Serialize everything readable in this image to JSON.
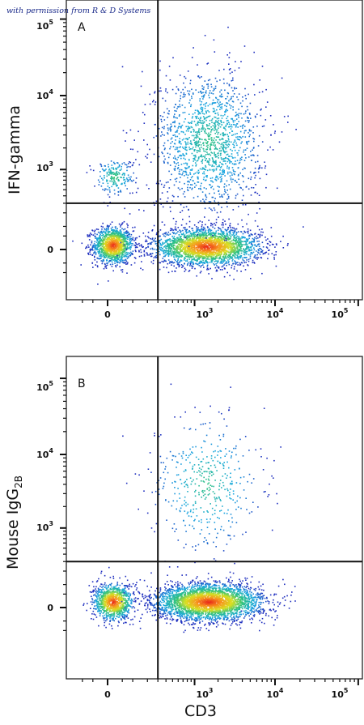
{
  "credit": "with permission from R & D Systems",
  "shared_xlabel": "CD3",
  "chart_data": [
    {
      "type": "scatter",
      "panel_label": "A",
      "ylabel": "IFN-gamma",
      "xlabel": "CD3",
      "scale": "biexponential",
      "xlim": [
        -150,
        200000
      ],
      "ylim": [
        -150,
        200000
      ],
      "x_ticks": [
        {
          "base": "0",
          "exp": ""
        },
        {
          "base": "10",
          "exp": "3"
        },
        {
          "base": "10",
          "exp": "4"
        },
        {
          "base": "10",
          "exp": "5"
        }
      ],
      "y_ticks": [
        {
          "base": "0",
          "exp": ""
        },
        {
          "base": "10",
          "exp": "3"
        },
        {
          "base": "10",
          "exp": "4"
        },
        {
          "base": "10",
          "exp": "5"
        }
      ],
      "quadrant_gate": {
        "x": 300,
        "y": 300
      },
      "clusters": [
        {
          "center": [
            15,
            15
          ],
          "count": 1300,
          "note": "CD3- IFN-gamma-"
        },
        {
          "center": [
            1400,
            10
          ],
          "count": 2600,
          "note": "CD3+ IFN-gamma-"
        },
        {
          "center": [
            1500,
            2500
          ],
          "count": 1500,
          "note": "CD3+ IFN-gamma+"
        },
        {
          "center": [
            20,
            800
          ],
          "count": 200,
          "note": "CD3- IFN-gamma+"
        }
      ],
      "color_scale": [
        "#1f2fbf",
        "#1aa8e0",
        "#2ec27e",
        "#d9e021",
        "#f7941d",
        "#e8221a"
      ]
    },
    {
      "type": "scatter",
      "panel_label": "B",
      "ylabel": "Mouse IgG",
      "ylabel_sub": "2B",
      "xlabel": "CD3",
      "scale": "biexponential",
      "xlim": [
        -150,
        200000
      ],
      "ylim": [
        -150,
        200000
      ],
      "x_ticks": [
        {
          "base": "0",
          "exp": ""
        },
        {
          "base": "10",
          "exp": "3"
        },
        {
          "base": "10",
          "exp": "4"
        },
        {
          "base": "10",
          "exp": "5"
        }
      ],
      "y_ticks": [
        {
          "base": "0",
          "exp": ""
        },
        {
          "base": "10",
          "exp": "3"
        },
        {
          "base": "10",
          "exp": "4"
        },
        {
          "base": "10",
          "exp": "5"
        }
      ],
      "quadrant_gate": {
        "x": 300,
        "y": 300
      },
      "clusters": [
        {
          "center": [
            15,
            20
          ],
          "count": 1000,
          "note": "CD3- isotype-"
        },
        {
          "center": [
            1500,
            20
          ],
          "count": 3200,
          "note": "CD3+ isotype-"
        },
        {
          "center": [
            1400,
            4000
          ],
          "count": 450,
          "note": "CD3+ isotype+ (sparse)"
        }
      ],
      "color_scale": [
        "#1f2fbf",
        "#1aa8e0",
        "#2ec27e",
        "#d9e021",
        "#f7941d",
        "#e8221a"
      ]
    }
  ]
}
